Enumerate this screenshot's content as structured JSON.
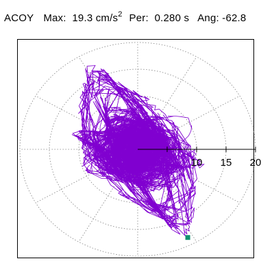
{
  "header": {
    "channel": "ACOY",
    "max_label": "Max:",
    "max_value": "19.3 cm/s",
    "max_exponent": "2",
    "period_label": "Per:",
    "period_value": "0.280 s",
    "angle_label": "Ang:",
    "angle_value": "-62.8"
  },
  "colors": {
    "trace": "#8000d0",
    "grid": "#808080",
    "marker": "#109070",
    "axis": "#000000"
  },
  "chart_data": {
    "type": "polar-orbit",
    "title": "",
    "unit": "cm/s^2",
    "max_value": 19.3,
    "period_s": 0.28,
    "angle_deg": -62.8,
    "radial_ticks": [
      5,
      10,
      15,
      20
    ],
    "radial_tick_labels": [
      "10",
      "15",
      "20"
    ],
    "radial_max": 20,
    "angular_grid_step_deg": 30,
    "grid": true,
    "end_marker": {
      "x": 8.5,
      "y": -16.5
    },
    "orbit_ellipses": [
      {
        "semi_major": 17.5,
        "semi_minor": 3.2,
        "angle_deg": -62.8
      },
      {
        "semi_major": 16.0,
        "semi_minor": 5.0,
        "angle_deg": -60
      },
      {
        "semi_major": 14.5,
        "semi_minor": 6.5,
        "angle_deg": -58
      },
      {
        "semi_major": 15.5,
        "semi_minor": 2.5,
        "angle_deg": -66
      },
      {
        "semi_major": 13.0,
        "semi_minor": 7.5,
        "angle_deg": -55
      },
      {
        "semi_major": 12.0,
        "semi_minor": 4.0,
        "angle_deg": -70
      },
      {
        "semi_major": 9.0,
        "semi_minor": 5.5,
        "angle_deg": -45
      },
      {
        "semi_major": 7.5,
        "semi_minor": 6.0,
        "angle_deg": -20
      },
      {
        "semi_major": 11.0,
        "semi_minor": 2.0,
        "angle_deg": -15
      }
    ]
  }
}
